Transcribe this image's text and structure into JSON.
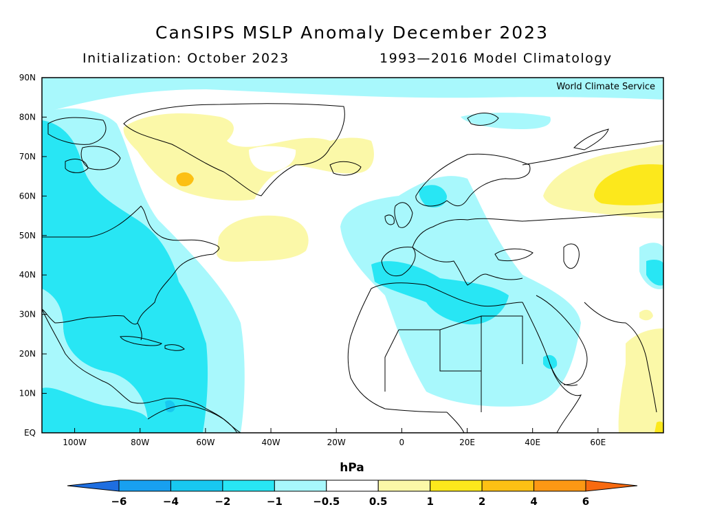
{
  "title": "CanSIPS MSLP Anomaly December 2023",
  "subtitle_left": "Initialization: October 2023",
  "subtitle_right": "1993—2016 Model Climatology",
  "credit": "World Climate Service",
  "lat_labels": [
    "90N",
    "80N",
    "70N",
    "60N",
    "50N",
    "40N",
    "30N",
    "20N",
    "10N",
    "EQ"
  ],
  "lat_values": [
    90,
    80,
    70,
    60,
    50,
    40,
    30,
    20,
    10,
    0
  ],
  "lon_labels": [
    "100W",
    "80W",
    "60W",
    "40W",
    "20W",
    "0",
    "20E",
    "40E",
    "60E"
  ],
  "lon_values": [
    -100,
    -80,
    -60,
    -40,
    -20,
    0,
    20,
    40,
    60
  ],
  "map_extent": {
    "lon_min": -110,
    "lon_max": 80,
    "lat_min": 0,
    "lat_max": 90
  },
  "colorbar": {
    "unit": "hPa",
    "ticks": [
      "−6",
      "−4",
      "−2",
      "−1",
      "−0.5",
      "0.5",
      "1",
      "2",
      "4",
      "6"
    ],
    "bins": [
      {
        "range": "<-6",
        "color": "#1e6ee0"
      },
      {
        "range": "-6 to -4",
        "color": "#18a0f0"
      },
      {
        "range": "-4 to -2",
        "color": "#18c8f0"
      },
      {
        "range": "-2 to -1",
        "color": "#28e6f4"
      },
      {
        "range": "-1 to -0.5",
        "color": "#a8f8fc"
      },
      {
        "range": "-0.5 to 0.5",
        "color": "#ffffff"
      },
      {
        "range": "0.5 to 1",
        "color": "#fbf8a8"
      },
      {
        "range": "1 to 2",
        "color": "#fce81c"
      },
      {
        "range": "2 to 4",
        "color": "#fcc014"
      },
      {
        "range": "4 to 6",
        "color": "#fc9814"
      },
      {
        "range": ">6",
        "color": "#f86a10"
      }
    ]
  }
}
